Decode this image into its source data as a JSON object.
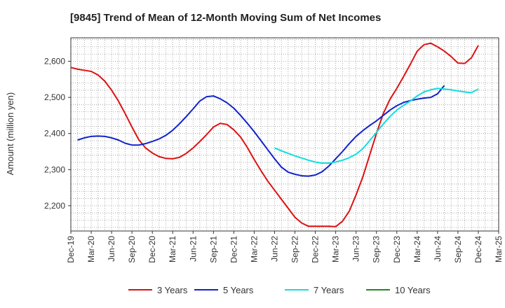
{
  "chart_data": {
    "type": "line",
    "title": "[9845]  Trend of Mean of 12-Month Moving Sum of Net Incomes",
    "ylabel": "Amount (million yen)",
    "xlabel": "",
    "ylim": [
      2130,
      2665
    ],
    "yticks": [
      {
        "value": 2200,
        "label": "2,200"
      },
      {
        "value": 2300,
        "label": "2,300"
      },
      {
        "value": 2400,
        "label": "2,400"
      },
      {
        "value": 2500,
        "label": "2,500"
      },
      {
        "value": 2600,
        "label": "2,600"
      }
    ],
    "xticks": [
      "Dec-19",
      "Mar-20",
      "Jun-20",
      "Sep-20",
      "Dec-20",
      "Mar-21",
      "Jun-21",
      "Sep-21",
      "Dec-21",
      "Mar-22",
      "Jun-22",
      "Sep-22",
      "Dec-22",
      "Mar-23",
      "Jun-23",
      "Sep-23",
      "Dec-23",
      "Mar-24",
      "Jun-24",
      "Sep-24",
      "Dec-24",
      "Mar-25"
    ],
    "grid": true,
    "legend_position": "bottom",
    "series": [
      {
        "name": "3 Years",
        "color": "#dd1111",
        "values": [
          2583,
          2578,
          2575,
          2572,
          2562,
          2545,
          2520,
          2490,
          2455,
          2418,
          2383,
          2360,
          2346,
          2336,
          2331,
          2330,
          2334,
          2345,
          2360,
          2378,
          2397,
          2418,
          2428,
          2425,
          2410,
          2390,
          2361,
          2328,
          2297,
          2268,
          2243,
          2218,
          2193,
          2168,
          2152,
          2143,
          2143,
          2143,
          2143,
          2142,
          2157,
          2185,
          2230,
          2280,
          2340,
          2400,
          2455,
          2495,
          2525,
          2558,
          2592,
          2628,
          2646,
          2650,
          2640,
          2628,
          2613,
          2595,
          2594,
          2610,
          2644
        ],
        "start_index": 0
      },
      {
        "name": "5 Years",
        "color": "#1122cc",
        "values": [
          2382,
          2388,
          2392,
          2393,
          2392,
          2388,
          2382,
          2373,
          2368,
          2368,
          2372,
          2378,
          2385,
          2395,
          2409,
          2427,
          2447,
          2468,
          2490,
          2502,
          2504,
          2496,
          2485,
          2470,
          2450,
          2428,
          2405,
          2380,
          2355,
          2330,
          2307,
          2293,
          2287,
          2283,
          2282,
          2285,
          2294,
          2310,
          2330,
          2350,
          2372,
          2392,
          2408,
          2422,
          2435,
          2450,
          2465,
          2477,
          2486,
          2491,
          2495,
          2498,
          2500,
          2510,
          2533
        ],
        "start_index": 1
      },
      {
        "name": "7 Years",
        "color": "#11dddd",
        "values": [
          2360,
          2352,
          2345,
          2338,
          2332,
          2326,
          2321,
          2318,
          2318,
          2321,
          2326,
          2333,
          2343,
          2358,
          2380,
          2403,
          2426,
          2447,
          2465,
          2478,
          2490,
          2504,
          2515,
          2521,
          2525,
          2523,
          2521,
          2518,
          2515,
          2513,
          2523
        ],
        "start_index": 30
      },
      {
        "name": "10 Years",
        "color": "#228822",
        "values": [],
        "start_index": 0
      }
    ]
  }
}
